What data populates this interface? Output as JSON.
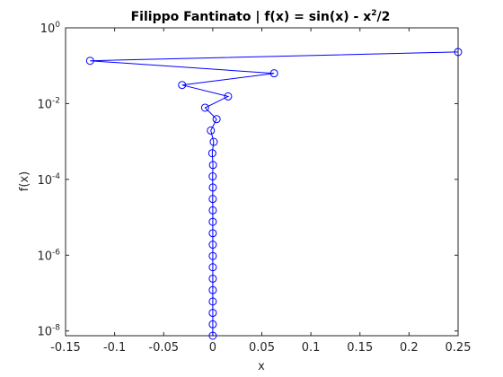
{
  "chart_data": {
    "type": "line",
    "title": {
      "main": "Filippo Fantinato | f(x) = sin(x) - x",
      "superscript": "2",
      "suffix": "/2"
    },
    "xlabel": "x",
    "ylabel": "f(x)",
    "x_scale": "linear",
    "y_scale": "log",
    "xlim": [
      -0.15,
      0.25
    ],
    "ylim": [
      7.5e-09,
      1
    ],
    "x_ticks": [
      -0.15,
      -0.1,
      -0.05,
      0,
      0.05,
      0.1,
      0.15,
      0.2,
      0.25
    ],
    "x_tick_labels": [
      "-0.15",
      "-0.1",
      "-0.05",
      "0",
      "0.05",
      "0.1",
      "0.15",
      "0.2",
      "0.25"
    ],
    "y_ticks": [
      {
        "value": 1,
        "base": "10",
        "exp": "0"
      },
      {
        "value": 0.01,
        "base": "10",
        "exp": "-2"
      },
      {
        "value": 0.0001,
        "base": "10",
        "exp": "-4"
      },
      {
        "value": 1e-06,
        "base": "10",
        "exp": "-6"
      },
      {
        "value": 1e-08,
        "base": "10",
        "exp": "-8"
      }
    ],
    "grid": false,
    "series": [
      {
        "color": "#0000ff",
        "marker": "circle",
        "points": [
          {
            "x": 0.25,
            "y": 0.23
          },
          {
            "x": -0.125,
            "y": 0.135
          },
          {
            "x": 0.0625,
            "y": 0.063
          },
          {
            "x": -0.03125,
            "y": 0.031
          },
          {
            "x": 0.0156,
            "y": 0.0155
          },
          {
            "x": -0.0078,
            "y": 0.0078
          },
          {
            "x": 0.0039,
            "y": 0.0039
          },
          {
            "x": -0.00195,
            "y": 0.00195
          },
          {
            "x": 0.00098,
            "y": 0.00098
          },
          {
            "x": -0.00049,
            "y": 0.00049
          },
          {
            "x": 0.00024,
            "y": 0.00024
          },
          {
            "x": -0.00012,
            "y": 0.00012
          },
          {
            "x": 6.1e-05,
            "y": 6.1e-05
          },
          {
            "x": -3.05e-05,
            "y": 3.05e-05
          },
          {
            "x": 1.53e-05,
            "y": 1.53e-05
          },
          {
            "x": -7.6e-06,
            "y": 7.6e-06
          },
          {
            "x": 3.8e-06,
            "y": 3.8e-06
          },
          {
            "x": -1.9e-06,
            "y": 1.9e-06
          },
          {
            "x": 9.5e-07,
            "y": 9.5e-07
          },
          {
            "x": -4.8e-07,
            "y": 4.8e-07
          },
          {
            "x": 2.4e-07,
            "y": 2.4e-07
          },
          {
            "x": -1.2e-07,
            "y": 1.2e-07
          },
          {
            "x": 6e-08,
            "y": 6e-08
          },
          {
            "x": -3e-08,
            "y": 3e-08
          },
          {
            "x": 1.5e-08,
            "y": 1.5e-08
          },
          {
            "x": 7.5e-09,
            "y": 7.5e-09
          }
        ]
      }
    ]
  }
}
